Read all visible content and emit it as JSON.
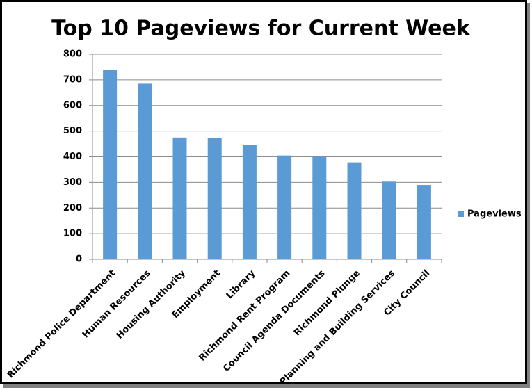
{
  "chart_data": {
    "type": "bar",
    "title": "Top 10 Pageviews for Current Week",
    "categories": [
      "Richmond Police Department",
      "Human Resources",
      "Housing Authority",
      "Employment",
      "Library",
      "Richmond Rent Program",
      "Council Agenda Documents",
      "Richmond Plunge",
      "Planning and Building Services",
      "City Council"
    ],
    "series": [
      {
        "name": "Pageviews",
        "color": "#5b9bd5",
        "values": [
          740,
          685,
          475,
          473,
          445,
          405,
          400,
          378,
          303,
          290
        ]
      }
    ],
    "ylim": [
      0,
      800
    ],
    "yticks": [
      0,
      100,
      200,
      300,
      400,
      500,
      600,
      700,
      800
    ],
    "grid": true,
    "legend": "right"
  }
}
